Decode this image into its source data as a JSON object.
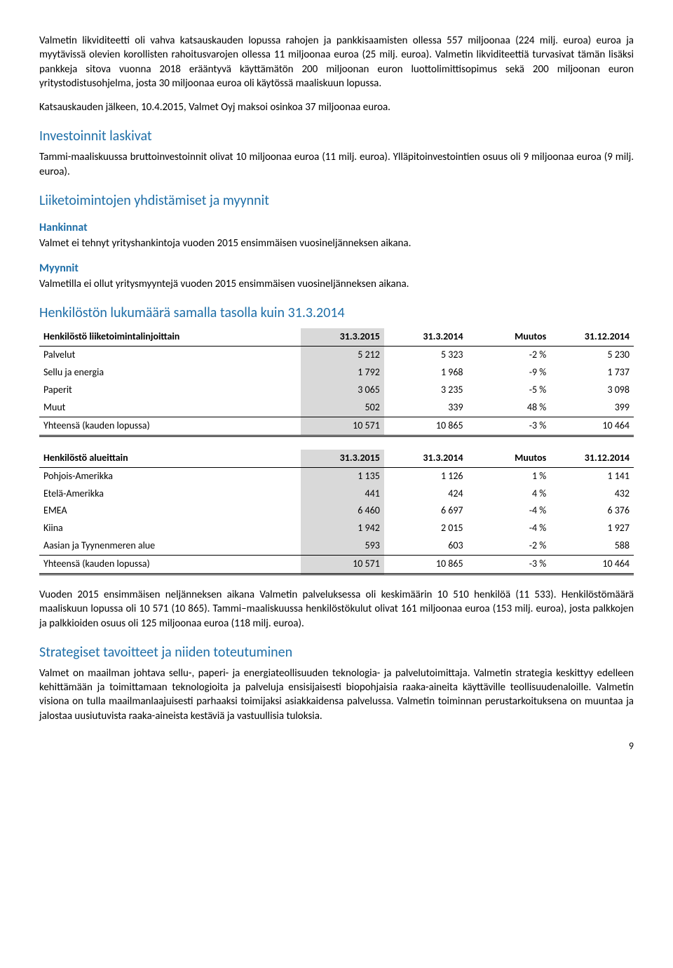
{
  "para1": "Valmetin likviditeetti oli vahva katsauskauden lopussa rahojen ja pankkisaamisten ollessa 557 miljoonaa (224 milj. euroa) euroa ja myytävissä olevien korollisten rahoitusvarojen ollessa 11 miljoonaa euroa (25 milj. euroa). Valmetin likviditeettiä turvasivat tämän lisäksi pankkeja sitova vuonna 2018 erääntyvä käyttämätön 200 miljoonan euron luottolimittisopimus sekä 200 miljoonan euron yritystodistusohjelma, josta 30 miljoonaa euroa oli käytössä maaliskuun lopussa.",
  "para2": "Katsauskauden jälkeen, 10.4.2015, Valmet Oyj maksoi osinkoa 37 miljoonaa euroa.",
  "h_invest": "Investoinnit laskivat",
  "para3": "Tammi-maaliskuussa bruttoinvestoinnit olivat 10 miljoonaa euroa (11 milj. euroa). Ylläpitoinvestointien osuus oli 9 miljoonaa euroa (9 milj. euroa).",
  "h_liike": "Liiketoimintojen yhdistämiset ja myynnit",
  "h_hank": "Hankinnat",
  "para4": "Valmet ei tehnyt yrityshankintoja vuoden 2015 ensimmäisen vuosineljänneksen aikana.",
  "h_myyn": "Myynnit",
  "para5": "Valmetilla ei ollut yritysmyyntejä vuoden 2015 ensimmäisen vuosineljänneksen aikana.",
  "h_henk": "Henkilöstön lukumäärä samalla tasolla kuin 31.3.2014",
  "table1": {
    "headers": [
      "Henkilöstö liiketoimintalinjoittain",
      "31.3.2015",
      "31.3.2014",
      "Muutos",
      "31.12.2014"
    ],
    "rows": [
      [
        "Palvelut",
        "5 212",
        "5 323",
        "-2 %",
        "5 230"
      ],
      [
        "Sellu ja energia",
        "1 792",
        "1 968",
        "-9 %",
        "1 737"
      ],
      [
        "Paperit",
        "3 065",
        "3 235",
        "-5 %",
        "3 098"
      ],
      [
        "Muut",
        "502",
        "339",
        "48 %",
        "399"
      ]
    ],
    "totalrow": [
      "Yhteensä (kauden lopussa)",
      "10 571",
      "10 865",
      "-3 %",
      "10 464"
    ]
  },
  "table2": {
    "headers": [
      "Henkilöstö alueittain",
      "31.3.2015",
      "31.3.2014",
      "Muutos",
      "31.12.2014"
    ],
    "rows": [
      [
        "Pohjois-Amerikka",
        "1 135",
        "1 126",
        "1 %",
        "1 141"
      ],
      [
        "Etelä-Amerikka",
        "441",
        "424",
        "4 %",
        "432"
      ],
      [
        "EMEA",
        "6 460",
        "6 697",
        "-4 %",
        "6 376"
      ],
      [
        "Kiina",
        "1 942",
        "2 015",
        "-4 %",
        "1 927"
      ],
      [
        "Aasian ja Tyynenmeren alue",
        "593",
        "603",
        "-2 %",
        "588"
      ]
    ],
    "totalrow": [
      "Yhteensä (kauden lopussa)",
      "10 571",
      "10 865",
      "-3 %",
      "10 464"
    ]
  },
  "para6": "Vuoden 2015 ensimmäisen neljänneksen aikana Valmetin palveluksessa oli keskimäärin 10 510 henkilöä (11 533). Henkilöstömäärä maaliskuun lopussa oli 10 571 (10 865). Tammi–maaliskuussa henkilöstökulut olivat 161 miljoonaa euroa (153 milj. euroa), josta palkkojen ja palkkioiden osuus oli 125 miljoonaa euroa (118 milj. euroa).",
  "h_strat": "Strategiset tavoitteet ja niiden toteutuminen",
  "para7": "Valmet on maailman johtava sellu-, paperi- ja energiateollisuuden teknologia- ja palvelutoimittaja. Valmetin strategia keskittyy edelleen kehittämään ja toimittamaan teknologioita ja palveluja ensisijaisesti biopohjaisia raaka-aineita käyttäville teollisuudenaloille. Valmetin visiona on tulla maailmanlaajuisesti parhaaksi toimijaksi asiakkaidensa palvelussa. Valmetin toiminnan perustarkoituksena on muuntaa ja jalostaa uusiutuvista raaka-aineista kestäviä ja vastuullisia tuloksia.",
  "pagenum": "9"
}
